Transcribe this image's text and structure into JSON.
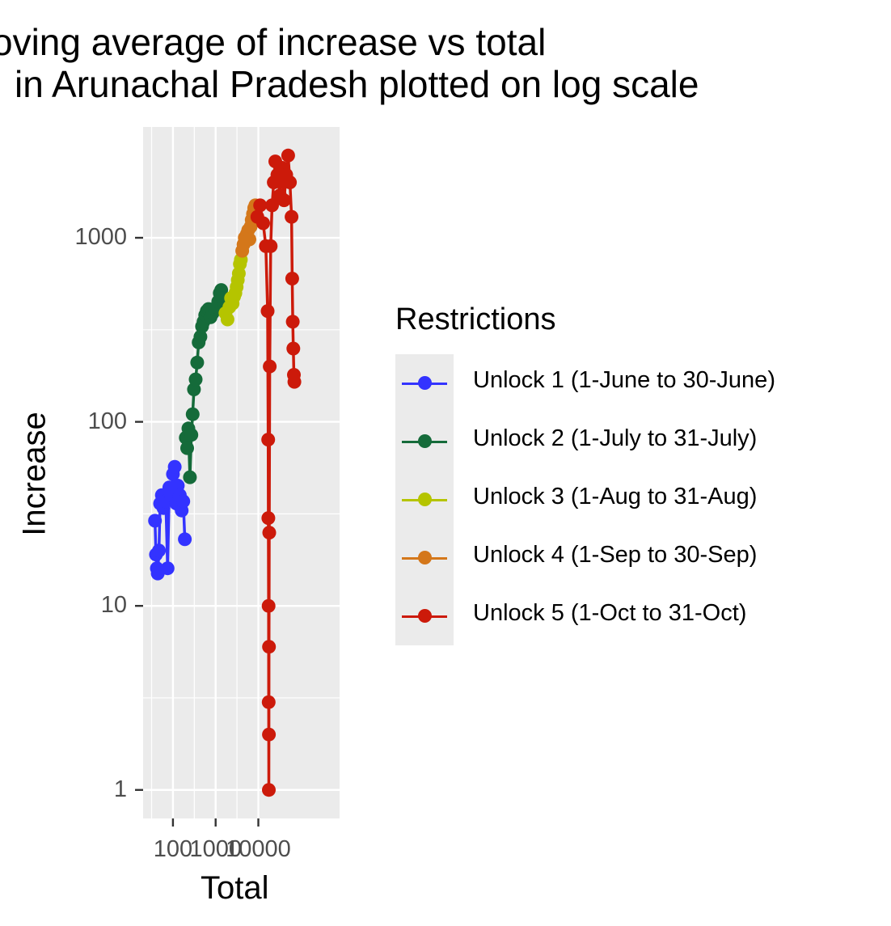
{
  "chart_data": {
    "type": "line",
    "title_lines": [
      "oving average of increase vs total",
      "in Arunachal Pradesh plotted on log scale"
    ],
    "xlabel": "Total",
    "ylabel": "Increase",
    "x_scale": "log",
    "y_scale": "log",
    "xlim": [
      20,
      800000
    ],
    "ylim": [
      0.7,
      4000
    ],
    "x_ticks": [
      100,
      1000,
      10000
    ],
    "x_tick_labels": [
      "100",
      "1000",
      "10000"
    ],
    "y_ticks": [
      1,
      10,
      100,
      1000
    ],
    "y_tick_labels": [
      "1",
      "10",
      "100",
      "1000"
    ],
    "grid": true,
    "legend": {
      "title": "Restrictions",
      "position": "right"
    },
    "series": [
      {
        "name": "Unlock 1 (1-June to 30-June)",
        "color": "#3333ff",
        "x": [
          38,
          40,
          42,
          44,
          47,
          50,
          55,
          60,
          68,
          75,
          82,
          90,
          100,
          110,
          120,
          130,
          145,
          160,
          175,
          190
        ],
        "y": [
          29,
          19,
          16,
          15,
          20,
          36,
          40,
          34,
          37,
          16,
          44,
          40,
          52,
          57,
          36,
          45,
          40,
          33,
          37,
          23
        ]
      },
      {
        "name": "Unlock 2 (1-July to 31-July)",
        "color": "#156b3a",
        "x": [
          200,
          215,
          230,
          250,
          270,
          290,
          310,
          340,
          370,
          400,
          440,
          480,
          520,
          570,
          620,
          680,
          760,
          850,
          950,
          1050,
          1150,
          1250,
          1350,
          1450,
          1550
        ],
        "y": [
          82,
          72,
          92,
          50,
          85,
          110,
          150,
          170,
          210,
          270,
          290,
          330,
          350,
          380,
          400,
          410,
          370,
          390,
          410,
          420,
          450,
          500,
          520,
          470,
          430
        ]
      },
      {
        "name": "Unlock 3 (1-Aug to 31-Aug)",
        "color": "#b5c400",
        "x": [
          1700,
          1900,
          2100,
          2300,
          2500,
          2700,
          2900,
          3100,
          3300,
          3500,
          3700,
          3900
        ],
        "y": [
          390,
          360,
          420,
          470,
          440,
          480,
          500,
          540,
          590,
          640,
          720,
          760
        ]
      },
      {
        "name": "Unlock 4 (1-Sep to 30-Sep)",
        "color": "#d4771a",
        "x": [
          4200,
          4500,
          4800,
          5100,
          5400,
          5800,
          6200,
          6600,
          7000,
          7500,
          8000,
          8500
        ],
        "y": [
          850,
          920,
          1000,
          960,
          1050,
          1100,
          980,
          1150,
          1250,
          1350,
          1450,
          1500
        ]
      },
      {
        "name": "Unlock 5 (1-Oct to 31-Oct)",
        "color": "#cc1a0a",
        "x": [
          9500,
          11000,
          13000,
          15000,
          16500,
          17000,
          17200,
          17400,
          17500,
          17600,
          17700,
          17800,
          18000,
          18500,
          19500,
          21000,
          23000,
          25000,
          28000,
          32000,
          36000,
          40000,
          45000,
          50000,
          55000,
          60000,
          62000,
          64000,
          66000,
          68000,
          70000
        ],
        "y": [
          1300,
          1500,
          1200,
          900,
          400,
          80,
          30,
          10,
          3,
          1,
          2,
          6,
          25,
          200,
          900,
          1500,
          2000,
          2600,
          2200,
          1700,
          2400,
          1600,
          2200,
          2800,
          2000,
          1300,
          600,
          350,
          250,
          180,
          165
        ]
      }
    ]
  }
}
